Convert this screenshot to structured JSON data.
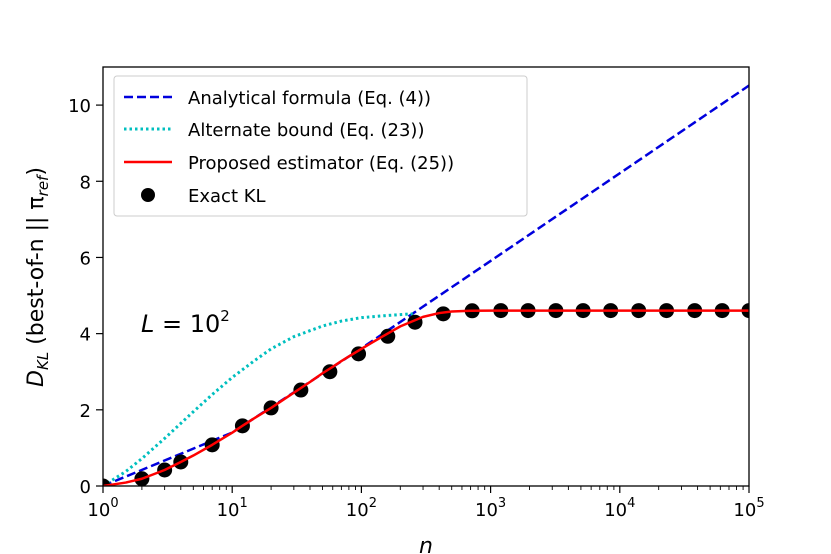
{
  "chart_data": {
    "type": "line",
    "xscale": "log",
    "xlim": [
      1,
      100000
    ],
    "ylim": [
      0,
      11
    ],
    "xlabel": "n",
    "ylabel": {
      "main": "D",
      "main_sub": "KL",
      "rest": " (best-of-n || π",
      "rest_sub": "ref",
      "close": ")"
    },
    "x_ticks": [
      {
        "value": 1,
        "base": "10",
        "exp": "0"
      },
      {
        "value": 10,
        "base": "10",
        "exp": "1"
      },
      {
        "value": 100,
        "base": "10",
        "exp": "2"
      },
      {
        "value": 1000,
        "base": "10",
        "exp": "3"
      },
      {
        "value": 10000,
        "base": "10",
        "exp": "4"
      },
      {
        "value": 100000,
        "base": "10",
        "exp": "5"
      }
    ],
    "y_ticks": [
      0,
      2,
      4,
      6,
      8,
      10
    ],
    "annotation": {
      "lhs": "L",
      "eq": " = ",
      "base": "10",
      "exp": "2"
    },
    "legend_position": "upper-left",
    "grid": false,
    "series": [
      {
        "name": "Analytical formula (Eq. (4))",
        "style": "dashed",
        "color": "#0000dd",
        "x": [
          1,
          10,
          100,
          1000,
          10000,
          100000
        ],
        "y": [
          0,
          1.403,
          3.615,
          5.909,
          8.211,
          10.513
        ]
      },
      {
        "name": "Alternate bound (Eq. (23))",
        "style": "dotted",
        "color": "#00bfbf",
        "x": [
          1,
          1.5,
          2,
          3,
          5,
          7,
          10,
          15,
          20,
          30,
          50,
          70,
          100,
          150,
          200,
          250
        ],
        "y": [
          0,
          0.38,
          0.72,
          1.25,
          1.95,
          2.4,
          2.85,
          3.3,
          3.6,
          3.92,
          4.2,
          4.33,
          4.42,
          4.47,
          4.5,
          4.52
        ]
      },
      {
        "name": "Proposed estimator (Eq. (25))",
        "style": "solid",
        "color": "#ff0000",
        "x": [
          1,
          1.5,
          2,
          3,
          4,
          5,
          7,
          10,
          12,
          15,
          20,
          30,
          40,
          50,
          60,
          70,
          80,
          100,
          120,
          150,
          200,
          300,
          400,
          500,
          700,
          1000,
          10000,
          100000
        ],
        "y": [
          0,
          0.09,
          0.19,
          0.42,
          0.63,
          0.8,
          1.08,
          1.4,
          1.58,
          1.79,
          2.05,
          2.45,
          2.73,
          2.96,
          3.13,
          3.28,
          3.4,
          3.6,
          3.76,
          3.95,
          4.19,
          4.44,
          4.54,
          4.58,
          4.6,
          4.605,
          4.605,
          4.605
        ]
      },
      {
        "name": "Exact KL",
        "style": "markers",
        "color": "#000000",
        "x": [
          1,
          2,
          3,
          4,
          7,
          12,
          20,
          34,
          57,
          95,
          160,
          260,
          430,
          720,
          1200,
          1950,
          3200,
          5200,
          8500,
          14000,
          23000,
          38000,
          62000,
          100000
        ],
        "y": [
          0,
          0.19,
          0.42,
          0.63,
          1.08,
          1.58,
          2.05,
          2.52,
          3.0,
          3.47,
          3.93,
          4.3,
          4.52,
          4.6,
          4.605,
          4.605,
          4.605,
          4.605,
          4.605,
          4.605,
          4.605,
          4.605,
          4.605,
          4.605
        ]
      }
    ]
  }
}
